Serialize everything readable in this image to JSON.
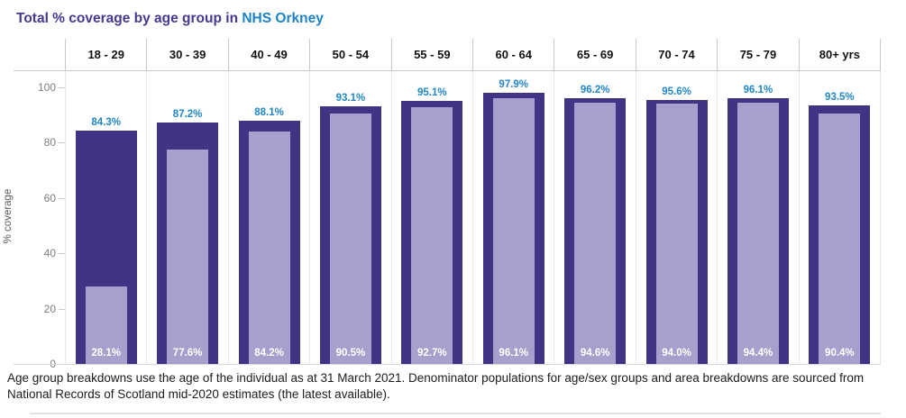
{
  "title": {
    "prefix": "Total % coverage by age group in ",
    "highlight": "NHS Orkney"
  },
  "footnote": "Age group breakdowns use the age of the individual as at 31 March 2021. Denominator populations for age/sex groups and area breakdowns are sourced from National Records of Scotland mid-2020 estimates (the latest available).",
  "colors": {
    "title_purple": "#453a91",
    "title_blue": "#1e82c8",
    "outer_bar": "#403584",
    "inner_bar": "#a6a0cc",
    "outer_value_label": "#2186c8",
    "inner_value_label": "#ffffff"
  },
  "chart_data": {
    "type": "bar",
    "title": "Total % coverage by age group in NHS Orkney",
    "categories": [
      "18 - 29",
      "30 - 39",
      "40 - 49",
      "50 - 54",
      "55 - 59",
      "60 - 64",
      "65 - 69",
      "70 - 74",
      "75 - 79",
      "80+ yrs"
    ],
    "series": [
      {
        "name": "outer_bar",
        "values": [
          84.3,
          87.2,
          88.1,
          93.1,
          95.1,
          97.9,
          96.2,
          95.6,
          96.1,
          93.5
        ]
      },
      {
        "name": "inner_bar",
        "values": [
          28.1,
          77.6,
          84.2,
          90.5,
          92.7,
          96.1,
          94.6,
          94.0,
          94.4,
          90.4
        ]
      }
    ],
    "value_suffix": "%",
    "xlabel": "",
    "ylabel": "% coverage",
    "yticks": [
      0,
      20,
      40,
      60,
      80,
      100
    ],
    "ylim": [
      0,
      106
    ],
    "grid": "vertical column separators only",
    "legend": "none"
  }
}
